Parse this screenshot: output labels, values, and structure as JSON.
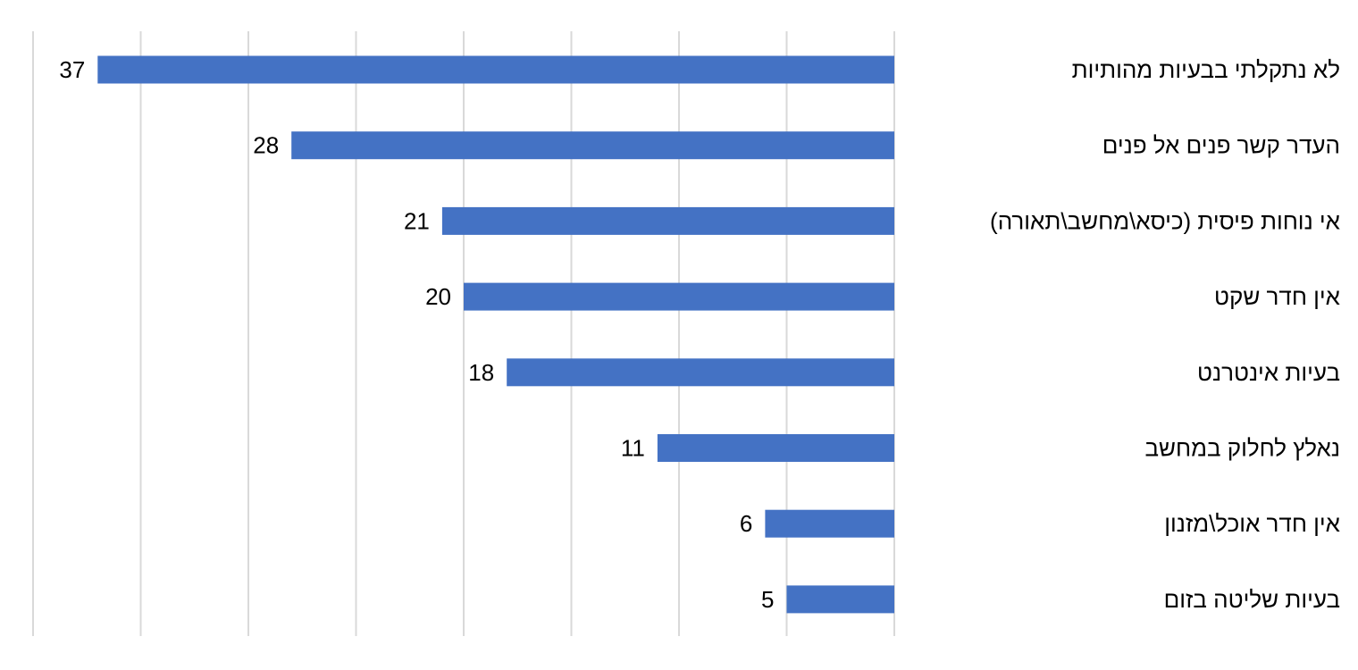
{
  "chart_data": {
    "type": "bar",
    "orientation": "horizontal",
    "direction": "rtl",
    "categories": [
      "לא נתקלתי בבעיות מהותיות",
      "העדר קשר פנים אל פנים",
      "אי נוחות פיסית (כיסא\\מחשב\\תאורה)",
      "אין חדר שקט",
      "בעיות אינטרנט",
      "נאלץ לחלוק במחשב",
      "אין חדר אוכל\\מזנון",
      "בעיות שליטה בזום"
    ],
    "values": [
      37,
      28,
      21,
      20,
      18,
      11,
      6,
      5
    ],
    "xlim": [
      0,
      40
    ],
    "gridlines": true,
    "grid_step": 5,
    "bar_color": "#4472c4",
    "grid_color": "#d9d9d9",
    "data_labels": true
  }
}
